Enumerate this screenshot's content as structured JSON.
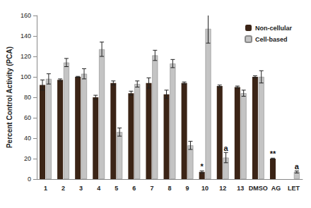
{
  "chart_data": {
    "type": "bar",
    "y_label": "Percent Control Activity (PCA)",
    "categories": [
      "1",
      "2",
      "3",
      "4",
      "5",
      "6",
      "7",
      "8",
      "9",
      "10",
      "12",
      "13",
      "DMSO",
      "AG",
      "LET"
    ],
    "series": [
      {
        "name": "Non-cellular",
        "color": "#3b2416",
        "values": [
          92,
          97,
          100,
          80,
          94,
          84,
          94,
          83,
          94,
          7,
          91,
          90,
          100,
          20,
          null
        ],
        "errors": [
          5,
          1,
          0.5,
          2,
          2,
          2,
          5,
          4,
          1,
          1,
          1,
          1,
          1,
          0.5,
          null
        ],
        "annotations": [
          null,
          null,
          null,
          null,
          null,
          null,
          null,
          null,
          null,
          "*",
          null,
          null,
          null,
          "**",
          null
        ]
      },
      {
        "name": "Cell-based",
        "color": "#c4c4c4",
        "values": [
          98,
          114,
          103,
          127,
          46,
          93,
          121,
          113,
          33,
          147,
          21,
          84,
          100,
          null,
          7
        ],
        "errors": [
          5,
          4,
          5,
          7,
          4,
          3,
          5,
          4,
          4,
          14,
          5,
          3,
          6,
          null,
          1
        ],
        "annotations": [
          null,
          null,
          null,
          null,
          null,
          null,
          null,
          null,
          null,
          null,
          "a",
          null,
          null,
          null,
          "a"
        ]
      }
    ],
    "ylim": [
      0,
      160
    ],
    "yticks": [
      0,
      20,
      40,
      60,
      80,
      100,
      120,
      140,
      160
    ],
    "grid": false,
    "legend": "top-right"
  }
}
